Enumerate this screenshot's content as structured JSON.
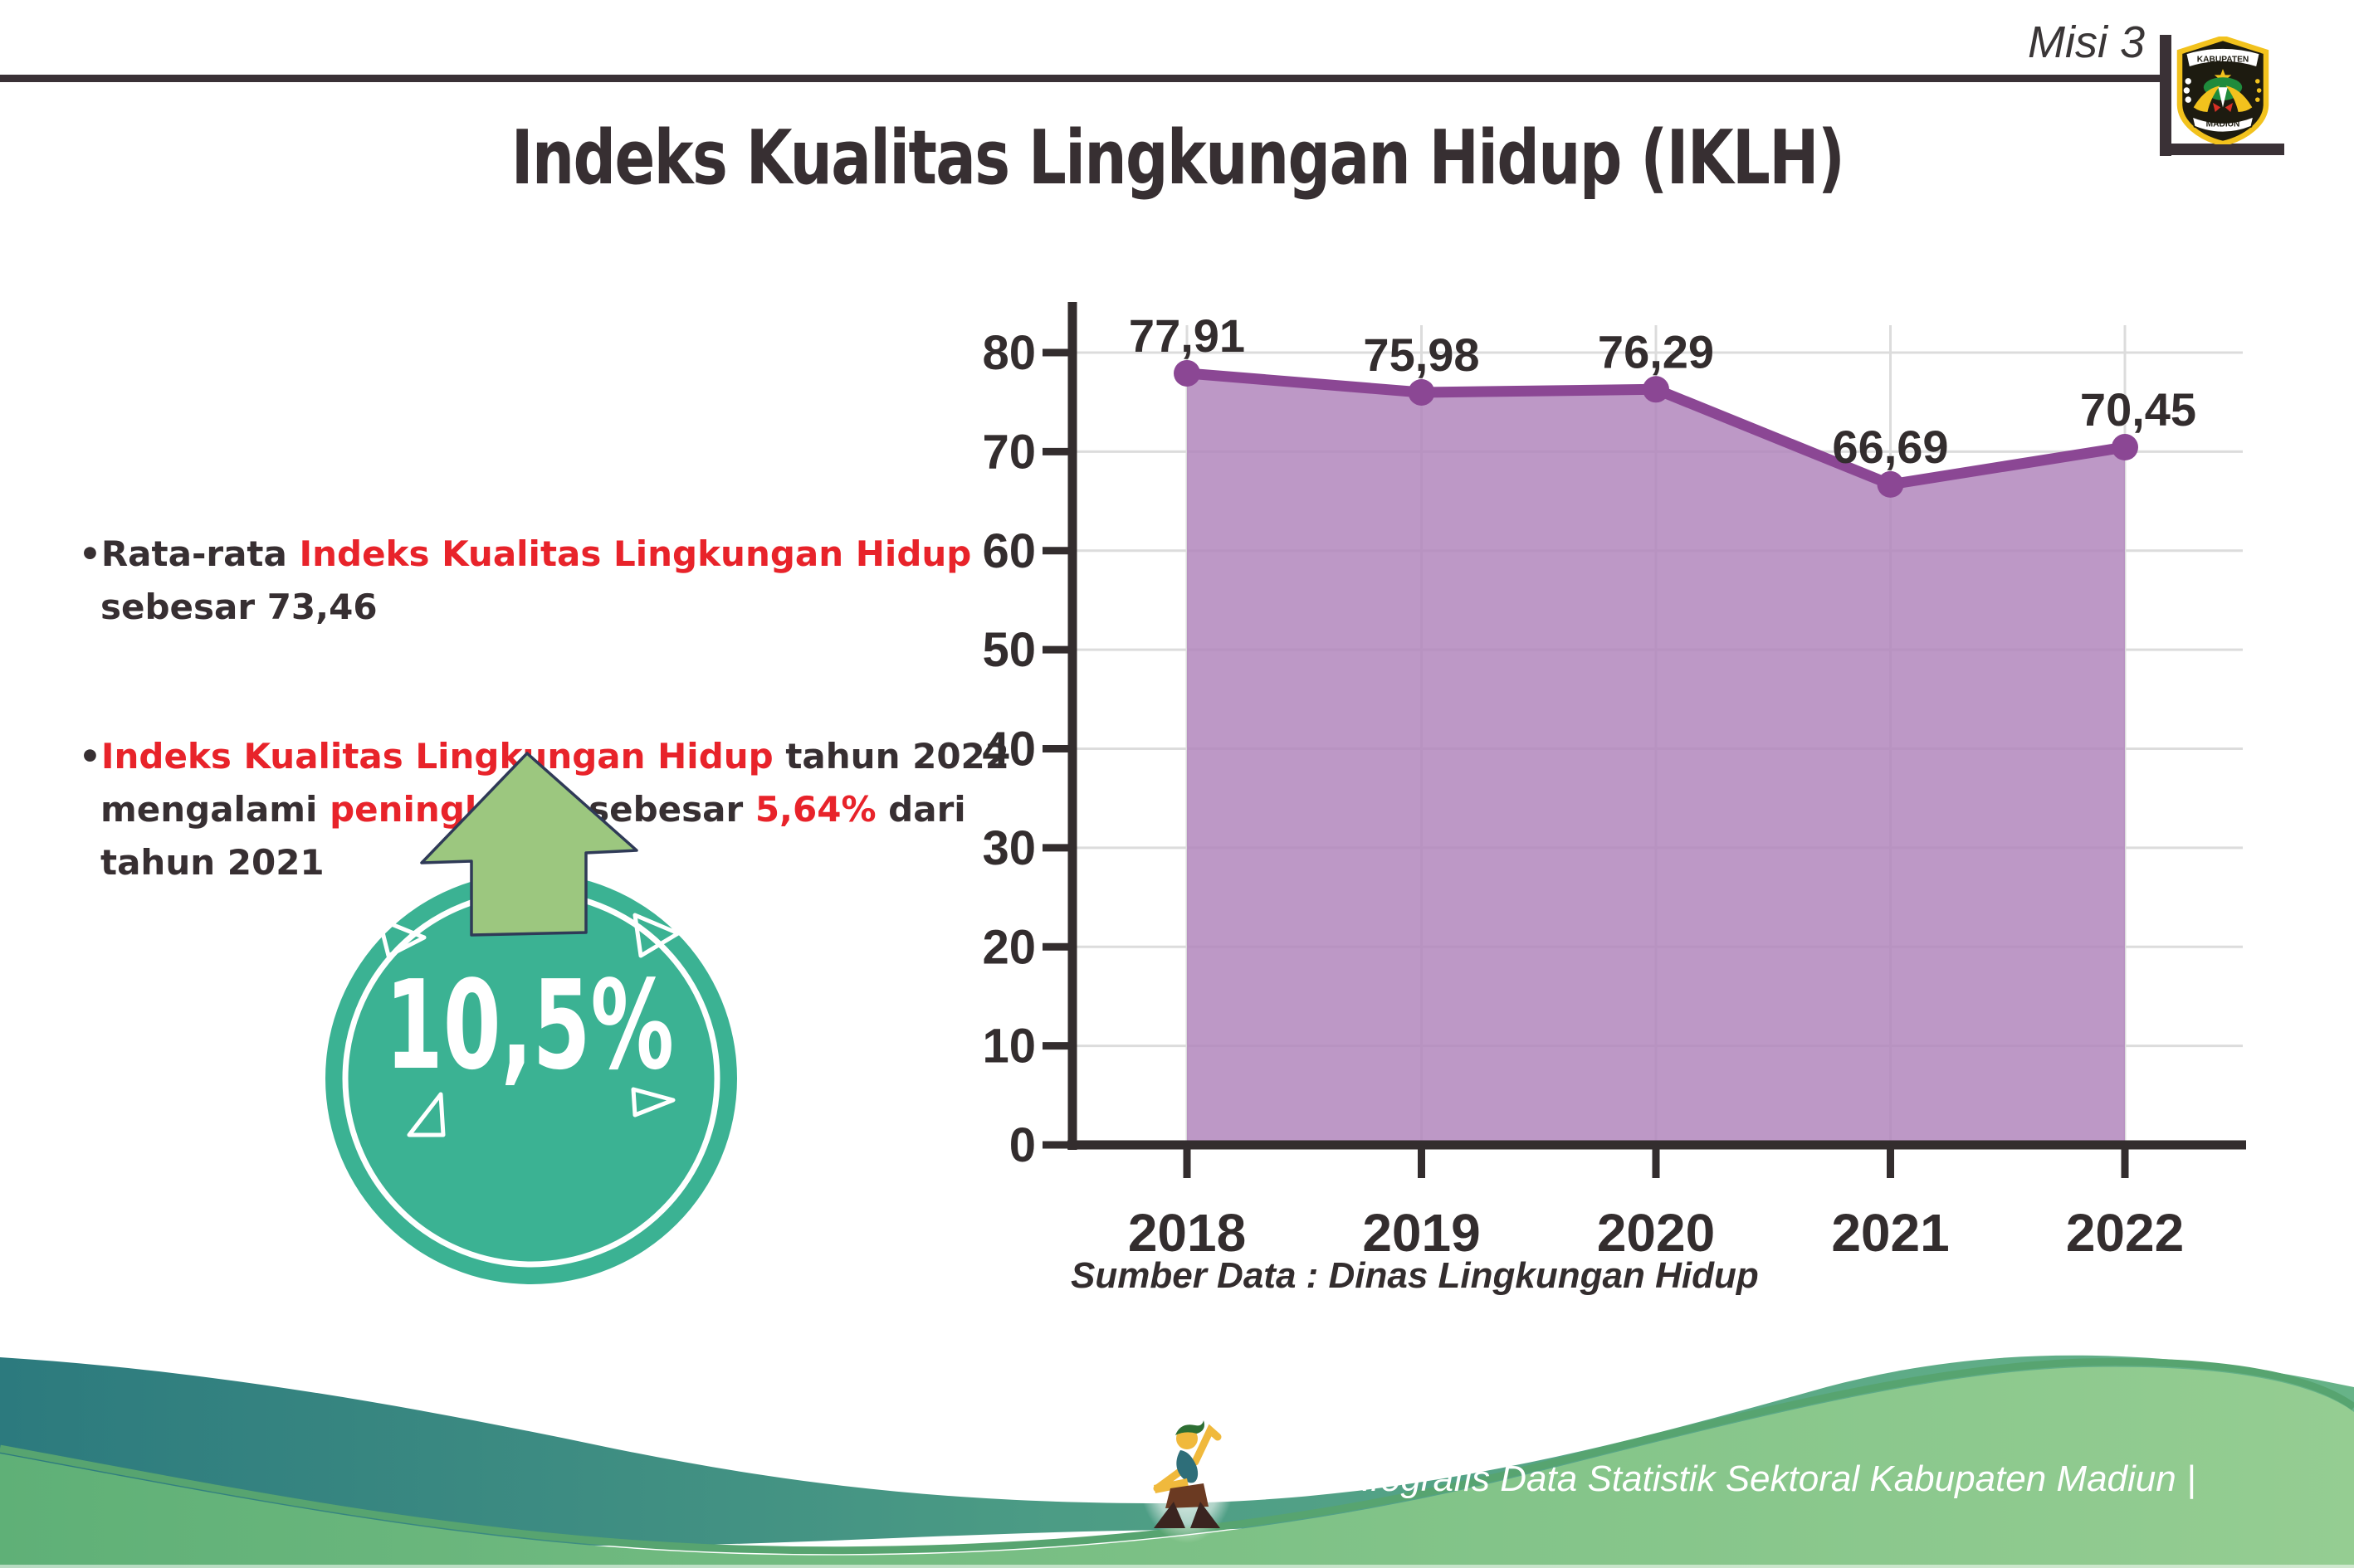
{
  "header": {
    "mission_label": "Misi 3",
    "title": "Indeks Kualitas Lingkungan Hidup (IKLH)",
    "logo": {
      "top_text": "KABUPATEN",
      "bottom_text": "MADIUN"
    }
  },
  "insights": {
    "bullet1_parts": [
      {
        "t": "•Rata-rata ",
        "red": false
      },
      {
        "t": "Indeks Kualitas Lingkungan Hidup",
        "red": true
      },
      {
        "t": "\nsebesar 73,46",
        "red": false
      }
    ],
    "bullet2_parts": [
      {
        "t": "•",
        "red": false
      },
      {
        "t": "Indeks Kualitas Lingkungan Hidup",
        "red": true
      },
      {
        "t": " tahun 2022\nmengalami ",
        "red": false
      },
      {
        "t": "peningkatan",
        "red": true
      },
      {
        "t": " sebesar ",
        "red": false
      },
      {
        "t": "5,64%",
        "red": true
      },
      {
        "t": " dari\ntahun 2021",
        "red": false
      }
    ]
  },
  "badge": {
    "value": "10,5%"
  },
  "chart_data": {
    "type": "area",
    "categories": [
      "2018",
      "2019",
      "2020",
      "2021",
      "2022"
    ],
    "values": [
      77.91,
      75.98,
      76.29,
      66.69,
      70.45
    ],
    "value_labels": [
      "77,91",
      "75,98",
      "76,29",
      "66,69",
      "70,45"
    ],
    "yticks": [
      0,
      10,
      20,
      30,
      40,
      50,
      60,
      70,
      80
    ],
    "ylim": [
      0,
      80
    ],
    "grid": true,
    "legend": "none",
    "caption": "Sumber Data : Dinas Lingkungan Hidup",
    "line_color": "#8b4794",
    "fill_color": "#b286bc",
    "axis_color": "#332d2e"
  },
  "footer": {
    "credit": "Media Infografis Data Statistik Sektoral Kabupaten Madiun |"
  },
  "colors": {
    "accent_red": "#e8232a",
    "text_dark": "#372f32",
    "badge_teal": "#3bb293",
    "arrow_green": "#9cc77f",
    "arrow_outline": "#2f3a57",
    "wave_teal": "#2c7a7e",
    "wave_green": "#7fc287",
    "grid_gray": "#dcdcdc"
  }
}
